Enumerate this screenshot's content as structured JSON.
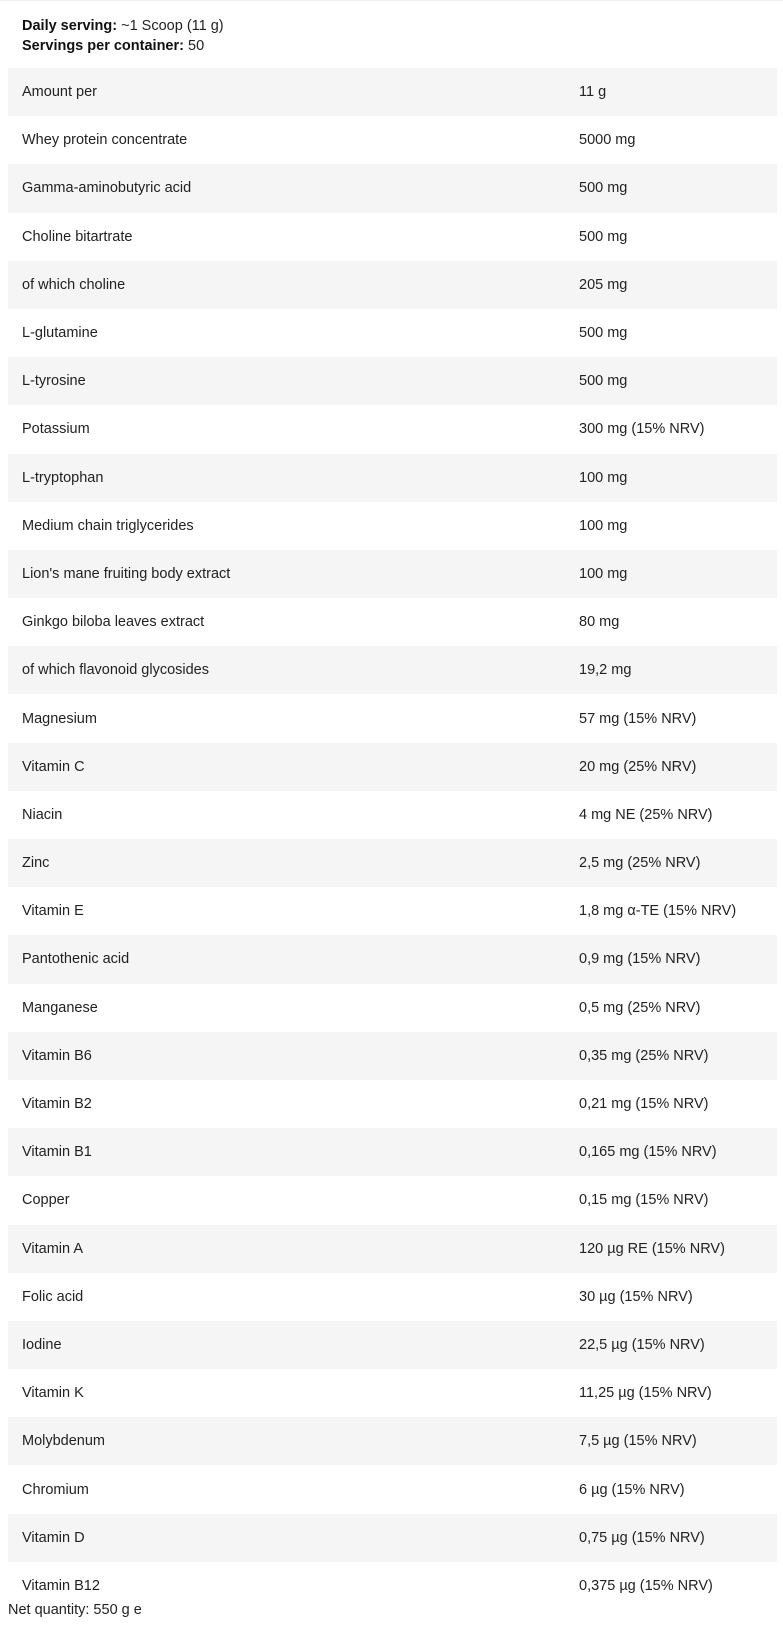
{
  "serving": {
    "daily_label": "Daily serving:",
    "daily_value": "~1 Scoop (11 g)",
    "servings_label": "Servings per container:",
    "servings_value": "50"
  },
  "rows": [
    {
      "name": "Amount per",
      "value": "11 g"
    },
    {
      "name": "Whey protein concentrate",
      "value": "5000 mg"
    },
    {
      "name": "Gamma-aminobutyric acid",
      "value": "500 mg"
    },
    {
      "name": "Choline bitartrate",
      "value": "500 mg"
    },
    {
      "name": "of which choline",
      "value": "205 mg"
    },
    {
      "name": "L-glutamine",
      "value": "500 mg"
    },
    {
      "name": "L-tyrosine",
      "value": "500 mg"
    },
    {
      "name": "Potassium",
      "value": "300 mg (15% NRV)"
    },
    {
      "name": "L-tryptophan",
      "value": "100 mg"
    },
    {
      "name": "Medium chain triglycerides",
      "value": "100 mg"
    },
    {
      "name": "Lion's mane fruiting body extract",
      "value": "100 mg"
    },
    {
      "name": "Ginkgo biloba leaves extract",
      "value": "80 mg"
    },
    {
      "name": "of which flavonoid glycosides",
      "value": "19,2 mg"
    },
    {
      "name": "Magnesium",
      "value": "57 mg (15% NRV)"
    },
    {
      "name": "Vitamin C",
      "value": "20 mg (25% NRV)"
    },
    {
      "name": "Niacin",
      "value": "4 mg NE (25% NRV)"
    },
    {
      "name": "Zinc",
      "value": "2,5 mg (25% NRV)"
    },
    {
      "name": "Vitamin E",
      "value": "1,8 mg α-TE (15% NRV)"
    },
    {
      "name": "Pantothenic acid",
      "value": "0,9 mg (15% NRV)"
    },
    {
      "name": "Manganese",
      "value": "0,5 mg (25% NRV)"
    },
    {
      "name": "Vitamin B6",
      "value": "0,35 mg (25% NRV)"
    },
    {
      "name": "Vitamin B2",
      "value": "0,21 mg (15% NRV)"
    },
    {
      "name": "Vitamin B1",
      "value": "0,165 mg (15% NRV)"
    },
    {
      "name": "Copper",
      "value": "0,15 mg (15% NRV)"
    },
    {
      "name": "Vitamin A",
      "value": "120 µg RE (15% NRV)"
    },
    {
      "name": "Folic acid",
      "value": "30 µg (15% NRV)"
    },
    {
      "name": "Iodine",
      "value": "22,5 µg (15% NRV)"
    },
    {
      "name": "Vitamin K",
      "value": "11,25 µg (15% NRV)"
    },
    {
      "name": "Molybdenum",
      "value": "7,5 µg (15% NRV)"
    },
    {
      "name": "Chromium",
      "value": "6 µg (15% NRV)"
    },
    {
      "name": "Vitamin D",
      "value": "0,75 µg (15% NRV)"
    },
    {
      "name": "Vitamin B12",
      "value": "0,375 µg (15% NRV)"
    }
  ],
  "net_quantity": "Net quantity: 550 g e"
}
